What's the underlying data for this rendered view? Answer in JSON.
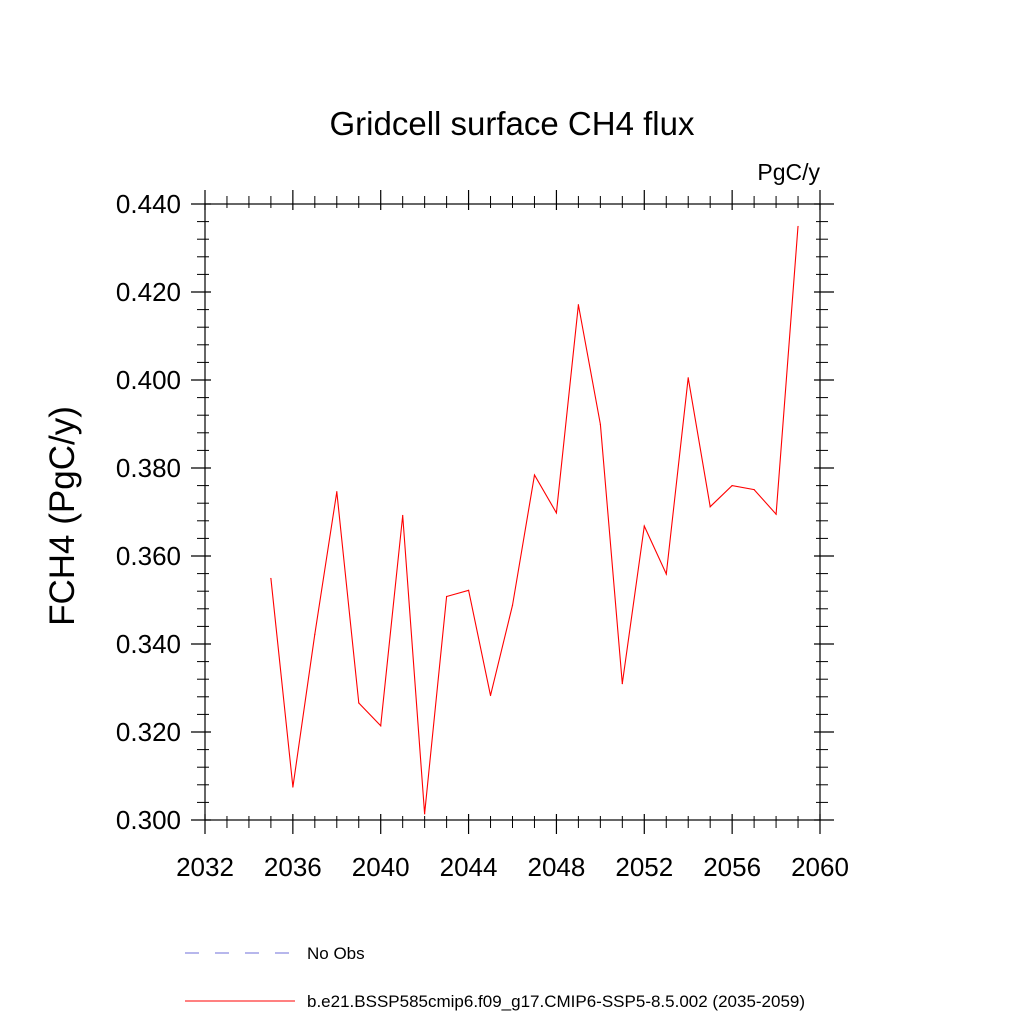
{
  "chart_data": {
    "type": "line",
    "title": "Gridcell surface CH4 flux",
    "units_label": "PgC/y",
    "xlabel": "",
    "ylabel": "FCH4  (PgC/y)",
    "xlim": [
      2032,
      2060
    ],
    "ylim": [
      0.3,
      0.44
    ],
    "x_ticks": [
      "2032",
      "2036",
      "2040",
      "2044",
      "2048",
      "2052",
      "2056",
      "2060"
    ],
    "y_ticks": [
      "0.300",
      "0.320",
      "0.340",
      "0.360",
      "0.380",
      "0.400",
      "0.420",
      "0.440"
    ],
    "series": [
      {
        "name": "b.e21.BSSP585cmip6.f09_g17.CMIP6-SSP5-8.5.002 (2035-2059)",
        "color": "#ff0000",
        "x": [
          2035,
          2036,
          2037,
          2038,
          2039,
          2040,
          2041,
          2042,
          2043,
          2044,
          2045,
          2046,
          2047,
          2048,
          2049,
          2050,
          2051,
          2052,
          2053,
          2054,
          2055,
          2056,
          2057,
          2058,
          2059
        ],
        "y": [
          0.3549,
          0.3075,
          0.3422,
          0.3746,
          0.3266,
          0.3214,
          0.3692,
          0.3014,
          0.3508,
          0.3522,
          0.3283,
          0.3488,
          0.3784,
          0.3698,
          0.4171,
          0.3899,
          0.331,
          0.3668,
          0.3559,
          0.4005,
          0.3712,
          0.376,
          0.3751,
          0.3695,
          0.4349
        ]
      }
    ],
    "legend": [
      {
        "label": "No Obs",
        "color": "#6f6fd8",
        "style": "dashed"
      },
      {
        "label": "b.e21.BSSP585cmip6.f09_g17.CMIP6-SSP5-8.5.002 (2035-2059)",
        "color": "#ff0000",
        "style": "solid"
      }
    ]
  }
}
